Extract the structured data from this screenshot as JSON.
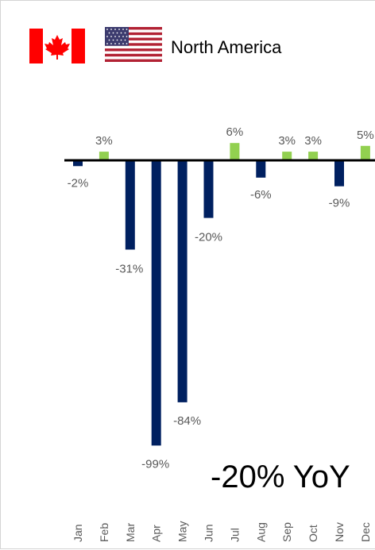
{
  "header": {
    "title": "North America",
    "flags": [
      {
        "icon": "canada-flag-icon",
        "colors": [
          "#ff0000",
          "#ffffff"
        ]
      },
      {
        "icon": "usa-flag-icon",
        "colors": [
          "#b22234",
          "#ffffff",
          "#3c3b6e"
        ]
      }
    ]
  },
  "summary": {
    "text": "-20% YoY"
  },
  "colors": {
    "negative": "#002060",
    "positive": "#92d050",
    "axis": "#000000",
    "label": "#595959"
  },
  "chart_data": {
    "type": "bar",
    "categories": [
      "Jan",
      "Feb",
      "Mar",
      "Apr",
      "May",
      "Jun",
      "Jul",
      "Aug",
      "Sep",
      "Oct",
      "Nov",
      "Dec"
    ],
    "values": [
      -2,
      3,
      -31,
      -99,
      -84,
      -20,
      6,
      -6,
      3,
      3,
      -9,
      5
    ],
    "data_labels": [
      "-2%",
      "3%",
      "-31%",
      "-99%",
      "-84%",
      "-20%",
      "6%",
      "-6%",
      "3%",
      "3%",
      "-9%",
      "5%"
    ],
    "ylim": [
      -100,
      10
    ],
    "grid": false,
    "xlabel": "",
    "ylabel": ""
  }
}
